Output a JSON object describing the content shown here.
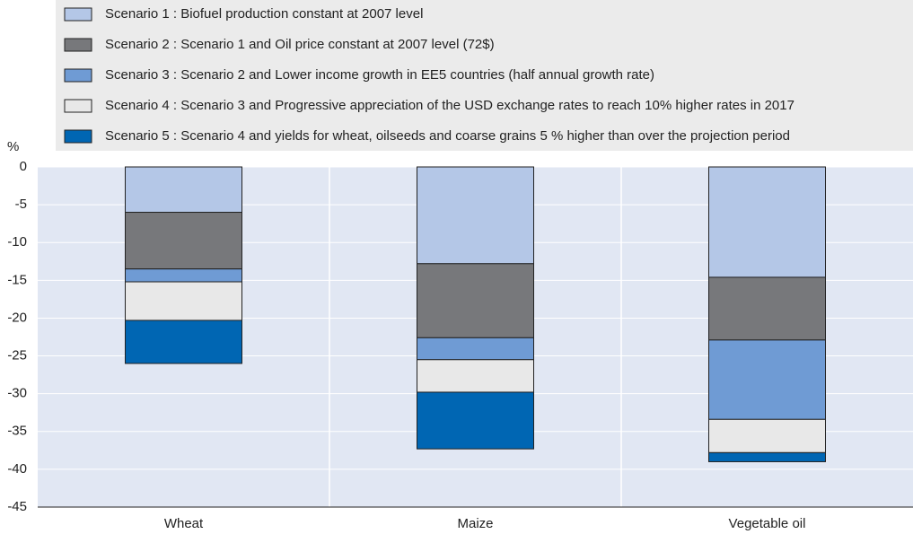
{
  "chart_data": {
    "type": "stacked-bar",
    "y_label": "%",
    "categories": [
      "Wheat",
      "Maize",
      "Vegetable oil"
    ],
    "series": [
      {
        "name": "Scenario 1 : Biofuel production constant at 2007 level",
        "color": "#b4c7e7",
        "values": [
          -6.0,
          -12.8,
          -14.6
        ]
      },
      {
        "name": "Scenario 2 : Scenario 1 and Oil price constant at 2007 level (72$)",
        "color": "#77787b",
        "values": [
          -7.5,
          -9.8,
          -8.3
        ]
      },
      {
        "name": "Scenario 3 : Scenario 2 and Lower income growth in EE5 countries (half annual growth rate)",
        "color": "#6f9bd4",
        "values": [
          -1.7,
          -2.9,
          -10.5
        ]
      },
      {
        "name": "Scenario 4 : Scenario 3 and Progressive appreciation of the USD exchange rates to reach 10% higher rates in 2017",
        "color": "#e8e8e8",
        "values": [
          -5.1,
          -4.3,
          -4.4
        ]
      },
      {
        "name": "Scenario 5 :  Scenario 4 and yields for wheat, oilseeds and coarse grains 5 % higher than over the projection period",
        "color": "#0066b3",
        "values": [
          -5.7,
          -7.5,
          -1.2
        ]
      }
    ],
    "ylim": [
      -45,
      0
    ],
    "yticks": [
      0,
      -5,
      -10,
      -15,
      -20,
      -25,
      -30,
      -35,
      -40,
      -45
    ],
    "grid": true,
    "legend": "top"
  }
}
